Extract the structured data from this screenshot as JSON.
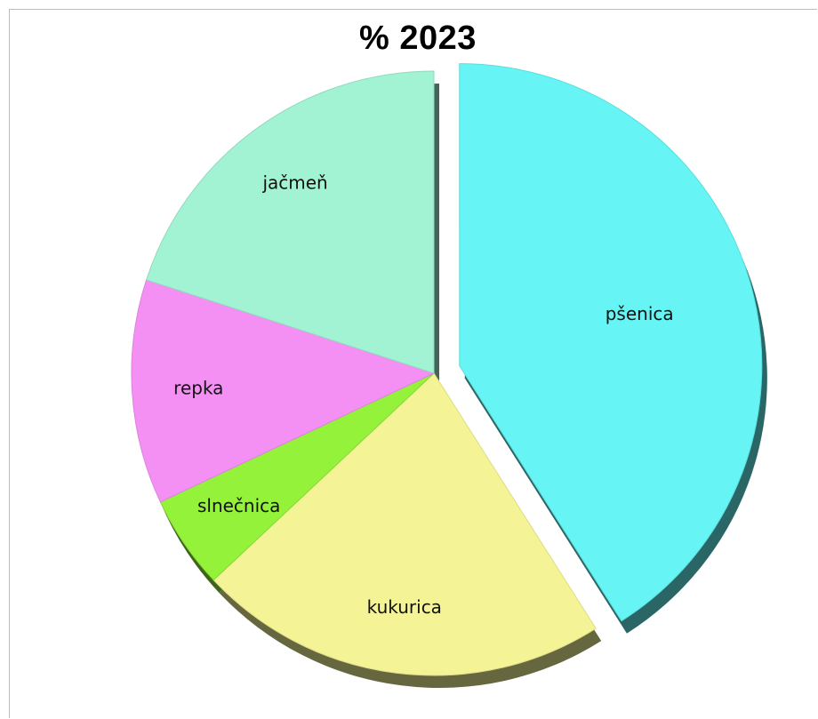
{
  "chart_data": {
    "type": "pie",
    "title": "% 2023",
    "slices": [
      {
        "label": "pšenica",
        "value": 41,
        "color": "#66f4f4"
      },
      {
        "label": "kukurica",
        "value": 22,
        "color": "#f4f496"
      },
      {
        "label": "slnečnica",
        "value": 5,
        "color": "#94f23a"
      },
      {
        "label": "repka",
        "value": 12,
        "color": "#f490f4"
      },
      {
        "label": "jačmeň",
        "value": 20,
        "color": "#a2f2d4"
      }
    ],
    "exploded": [
      "pšenica"
    ],
    "labels_inside": true
  }
}
